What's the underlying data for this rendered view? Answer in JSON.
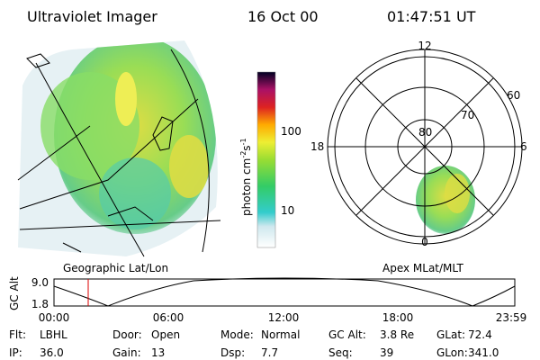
{
  "header": {
    "instrument": "Ultraviolet Imager",
    "date": "16 Oct 00",
    "time": "01:47:51 UT"
  },
  "left_panel": {
    "label": "Geographic Lat/Lon"
  },
  "colorbar": {
    "label": {
      "text1": "photon cm",
      "sup1": "-2",
      "text2": "s",
      "sup2": "-1"
    },
    "ticks": [
      "100",
      "10"
    ]
  },
  "polar_panel": {
    "label": "Apex MLat/MLT",
    "mlt_labels": {
      "top": "12",
      "left": "18",
      "right": "6",
      "bottom": "0"
    },
    "mlat_labels": [
      "80",
      "70",
      "60"
    ]
  },
  "timeline": {
    "axis_label": "GC Alt",
    "ticks": [
      "9.0",
      "1.8"
    ],
    "time_labels": [
      "00:00",
      "06:00",
      "12:00",
      "18:00",
      "23:59"
    ]
  },
  "info": [
    [
      {
        "label": "Flt:",
        "value": "LBHL"
      },
      {
        "label": "Door:",
        "value": "Open"
      },
      {
        "label": "Mode:",
        "value": "Normal"
      },
      {
        "label": "GC Alt:",
        "value": "3.8 Re"
      },
      {
        "label": "GLat:",
        "value": "72.4"
      }
    ],
    [
      {
        "label": "IP:",
        "value": "36.0"
      },
      {
        "label": "Gain:",
        "value": "13"
      },
      {
        "label": "Dsp:",
        "value": "7.7"
      },
      {
        "label": "Seq:",
        "value": "39"
      },
      {
        "label": "GLon:",
        "value": "341.0"
      }
    ]
  ]
}
